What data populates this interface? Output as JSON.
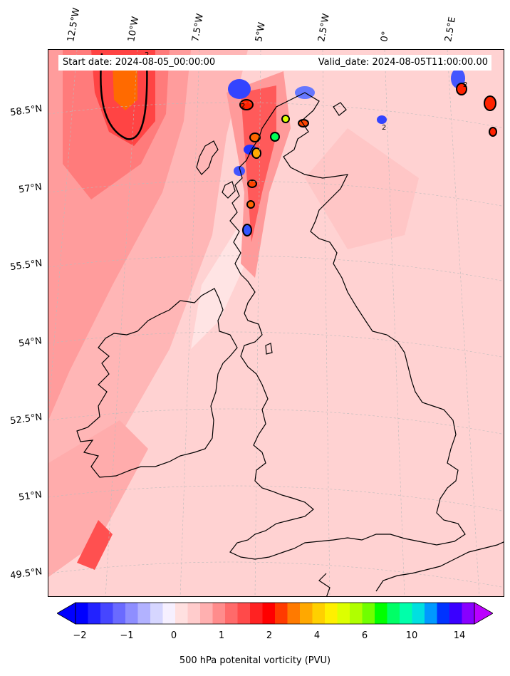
{
  "header": {
    "start_date": "Start date: 2024-08-05_00:00:00",
    "valid_date": "Valid_date: 2024-08-05T11:00:00.00"
  },
  "axes": {
    "lon_labels": [
      "12.5°W",
      "10°W",
      "7.5°W",
      "5°W",
      "2.5°W",
      "0°",
      "2.5°E"
    ],
    "lat_labels": [
      "58.5°N",
      "57°N",
      "55.5°N",
      "54°N",
      "52.5°N",
      "51°N",
      "49.5°N"
    ]
  },
  "colorbar": {
    "label": "500 hPa potenital vorticity (PVU)",
    "ticks": [
      "−2",
      "−1",
      "0",
      "1",
      "2",
      "4",
      "6",
      "10",
      "14"
    ],
    "colors": [
      "#0000ff",
      "#2222ff",
      "#4646ff",
      "#6a6aff",
      "#8e8eff",
      "#b2b2ff",
      "#d6d6ff",
      "#f6f0ff",
      "#ffe0e0",
      "#ffcccc",
      "#ffb0b0",
      "#ff8c8c",
      "#ff6a6a",
      "#ff4a4a",
      "#ff2222",
      "#ff0000",
      "#ff3a00",
      "#ff7a00",
      "#ffa800",
      "#ffd000",
      "#fff000",
      "#ddff00",
      "#b0ff00",
      "#70ff00",
      "#00ff00",
      "#00ff66",
      "#00ffaa",
      "#00e0e0",
      "#0099ff",
      "#0033ff",
      "#3a00ff",
      "#8800ff"
    ],
    "extend_low_color": "#0000ff",
    "extend_high_color": "#bb00ff"
  },
  "field_colors": {
    "background": "#ffd0d0",
    "light": "#ffe6e6",
    "medium": "#ffb0b0",
    "strong": "#ff8080",
    "intense": "#ff3030",
    "core": "#ff5500",
    "negative": "#3344ff",
    "coast": "#000000"
  }
}
